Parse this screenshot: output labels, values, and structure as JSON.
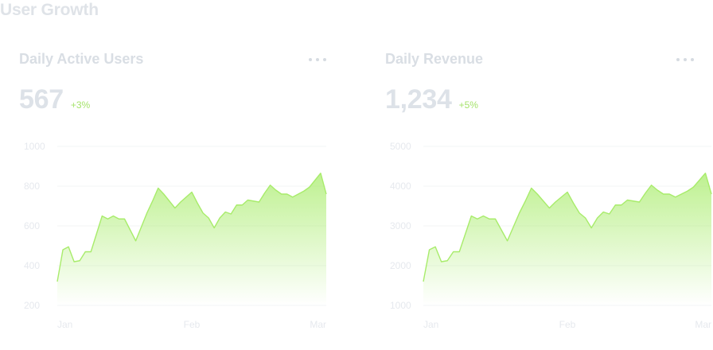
{
  "page": {
    "title": "User Growth"
  },
  "colors": {
    "accent": "#a8ec6b",
    "muted_text": "#dfe3e8",
    "grid": "#f3f4f6"
  },
  "cards": [
    {
      "title": "Daily Active Users",
      "more_icon": "more-horizontal-icon",
      "metric": {
        "value": "567",
        "delta": "+3%"
      }
    },
    {
      "title": "Daily Revenue",
      "more_icon": "more-horizontal-icon",
      "metric": {
        "value": "1,234",
        "delta": "+5%"
      }
    }
  ],
  "chart_data": [
    {
      "type": "area",
      "title": "Daily Active Users",
      "xlabel": "",
      "ylabel": "",
      "ylim": [
        200,
        1000
      ],
      "yticks": [
        "200",
        "400",
        "600",
        "800",
        "1000"
      ],
      "xticks": [
        "Jan",
        "Feb",
        "Mar"
      ],
      "grid": true,
      "series": [
        {
          "values": [
            320,
            480,
            495,
            420,
            425,
            470,
            470,
            560,
            650,
            635,
            650,
            635,
            635,
            580,
            525,
            595,
            665,
            725,
            790,
            760,
            725,
            690,
            720,
            745,
            770,
            715,
            665,
            640,
            590,
            640,
            670,
            660,
            705,
            705,
            730,
            725,
            720,
            765,
            805,
            780,
            760,
            760,
            745,
            760,
            775,
            795,
            830,
            865,
            760
          ]
        }
      ]
    },
    {
      "type": "area",
      "title": "Daily Revenue",
      "xlabel": "",
      "ylabel": "",
      "ylim": [
        1000,
        5000
      ],
      "yticks": [
        "1000",
        "2000",
        "3000",
        "4000",
        "5000"
      ],
      "xticks": [
        "Jan",
        "Feb",
        "Mar"
      ],
      "grid": true,
      "series": [
        {
          "values": [
            1600,
            2400,
            2475,
            2100,
            2125,
            2350,
            2350,
            2800,
            3250,
            3175,
            3250,
            3175,
            3175,
            2900,
            2625,
            2975,
            3325,
            3625,
            3950,
            3800,
            3625,
            3450,
            3600,
            3725,
            3850,
            3575,
            3325,
            3200,
            2950,
            3200,
            3350,
            3300,
            3525,
            3525,
            3650,
            3625,
            3600,
            3825,
            4025,
            3900,
            3800,
            3800,
            3725,
            3800,
            3875,
            3975,
            4150,
            4325,
            3800
          ]
        }
      ]
    }
  ]
}
